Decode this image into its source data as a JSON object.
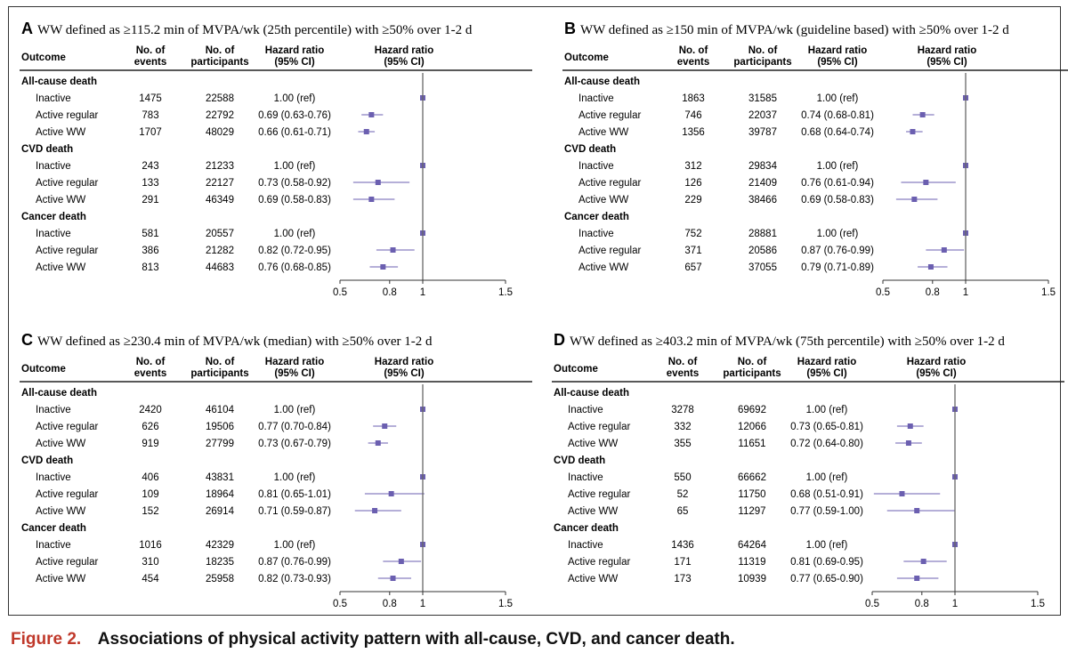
{
  "caption": {
    "figure_label": "Figure 2.",
    "text": "Associations of physical activity pattern with all-cause, CVD, and cancer death."
  },
  "colors": {
    "marker": "#6b5fb0",
    "ref_line": "#666666",
    "caption_label": "#c0392b"
  },
  "chart_data": [
    {
      "type": "forest",
      "panel_letter": "A",
      "title": "WW defined as ≥115.2 min of MVPA/wk (25th percentile) with ≥50% over 1-2 d",
      "columns": {
        "outcome": "Outcome",
        "events": [
          "No. of",
          "events"
        ],
        "participants": [
          "No. of",
          "participants"
        ],
        "hr": [
          "Hazard ratio",
          "(95% CI)"
        ],
        "plot": [
          "Hazard ratio",
          "(95% CI)"
        ]
      },
      "xlim": [
        0.5,
        1.5
      ],
      "xticks": [
        "0.5",
        "0.8",
        "1",
        "1.5"
      ],
      "groups": [
        {
          "name": "All-cause death",
          "rows": [
            {
              "label": "Inactive",
              "events": "1475",
              "participants": "22588",
              "hr_text": "1.00 (ref)",
              "hr": 1.0,
              "lo": 1.0,
              "hi": 1.0
            },
            {
              "label": "Active regular",
              "events": "783",
              "participants": "22792",
              "hr_text": "0.69 (0.63-0.76)",
              "hr": 0.69,
              "lo": 0.63,
              "hi": 0.76
            },
            {
              "label": "Active WW",
              "events": "1707",
              "participants": "48029",
              "hr_text": "0.66 (0.61-0.71)",
              "hr": 0.66,
              "lo": 0.61,
              "hi": 0.71
            }
          ]
        },
        {
          "name": "CVD death",
          "rows": [
            {
              "label": "Inactive",
              "events": "243",
              "participants": "21233",
              "hr_text": "1.00 (ref)",
              "hr": 1.0,
              "lo": 1.0,
              "hi": 1.0
            },
            {
              "label": "Active regular",
              "events": "133",
              "participants": "22127",
              "hr_text": "0.73 (0.58-0.92)",
              "hr": 0.73,
              "lo": 0.58,
              "hi": 0.92
            },
            {
              "label": "Active WW",
              "events": "291",
              "participants": "46349",
              "hr_text": "0.69 (0.58-0.83)",
              "hr": 0.69,
              "lo": 0.58,
              "hi": 0.83
            }
          ]
        },
        {
          "name": "Cancer death",
          "rows": [
            {
              "label": "Inactive",
              "events": "581",
              "participants": "20557",
              "hr_text": "1.00 (ref)",
              "hr": 1.0,
              "lo": 1.0,
              "hi": 1.0
            },
            {
              "label": "Active regular",
              "events": "386",
              "participants": "21282",
              "hr_text": "0.82 (0.72-0.95)",
              "hr": 0.82,
              "lo": 0.72,
              "hi": 0.95
            },
            {
              "label": "Active WW",
              "events": "813",
              "participants": "44683",
              "hr_text": "0.76 (0.68-0.85)",
              "hr": 0.76,
              "lo": 0.68,
              "hi": 0.85
            }
          ]
        }
      ]
    },
    {
      "type": "forest",
      "panel_letter": "B",
      "title": "WW defined as ≥150 min of MVPA/wk (guideline based) with ≥50% over 1-2 d",
      "columns": {
        "outcome": "Outcome",
        "events": [
          "No. of",
          "events"
        ],
        "participants": [
          "No. of",
          "participants"
        ],
        "hr": [
          "Hazard ratio",
          "(95% CI)"
        ],
        "plot": [
          "Hazard ratio",
          "(95% CI)"
        ]
      },
      "xlim": [
        0.5,
        1.5
      ],
      "xticks": [
        "0.5",
        "0.8",
        "1",
        "1.5"
      ],
      "groups": [
        {
          "name": "All-cause death",
          "rows": [
            {
              "label": "Inactive",
              "events": "1863",
              "participants": "31585",
              "hr_text": "1.00 (ref)",
              "hr": 1.0,
              "lo": 1.0,
              "hi": 1.0
            },
            {
              "label": "Active regular",
              "events": "746",
              "participants": "22037",
              "hr_text": "0.74 (0.68-0.81)",
              "hr": 0.74,
              "lo": 0.68,
              "hi": 0.81
            },
            {
              "label": "Active WW",
              "events": "1356",
              "participants": "39787",
              "hr_text": "0.68 (0.64-0.74)",
              "hr": 0.68,
              "lo": 0.64,
              "hi": 0.74
            }
          ]
        },
        {
          "name": "CVD death",
          "rows": [
            {
              "label": "Inactive",
              "events": "312",
              "participants": "29834",
              "hr_text": "1.00 (ref)",
              "hr": 1.0,
              "lo": 1.0,
              "hi": 1.0
            },
            {
              "label": "Active regular",
              "events": "126",
              "participants": "21409",
              "hr_text": "0.76 (0.61-0.94)",
              "hr": 0.76,
              "lo": 0.61,
              "hi": 0.94
            },
            {
              "label": "Active WW",
              "events": "229",
              "participants": "38466",
              "hr_text": "0.69 (0.58-0.83)",
              "hr": 0.69,
              "lo": 0.58,
              "hi": 0.83
            }
          ]
        },
        {
          "name": "Cancer death",
          "rows": [
            {
              "label": "Inactive",
              "events": "752",
              "participants": "28881",
              "hr_text": "1.00 (ref)",
              "hr": 1.0,
              "lo": 1.0,
              "hi": 1.0
            },
            {
              "label": "Active regular",
              "events": "371",
              "participants": "20586",
              "hr_text": "0.87 (0.76-0.99)",
              "hr": 0.87,
              "lo": 0.76,
              "hi": 0.99
            },
            {
              "label": "Active WW",
              "events": "657",
              "participants": "37055",
              "hr_text": "0.79 (0.71-0.89)",
              "hr": 0.79,
              "lo": 0.71,
              "hi": 0.89
            }
          ]
        }
      ]
    },
    {
      "type": "forest",
      "panel_letter": "C",
      "title": "WW defined as ≥230.4 min of MVPA/wk (median) with ≥50% over 1-2 d",
      "columns": {
        "outcome": "Outcome",
        "events": [
          "No. of",
          "events"
        ],
        "participants": [
          "No. of",
          "participants"
        ],
        "hr": [
          "Hazard ratio",
          "(95% CI)"
        ],
        "plot": [
          "Hazard ratio",
          "(95% CI)"
        ]
      },
      "xlim": [
        0.5,
        1.5
      ],
      "xticks": [
        "0.5",
        "0.8",
        "1",
        "1.5"
      ],
      "groups": [
        {
          "name": "All-cause death",
          "rows": [
            {
              "label": "Inactive",
              "events": "2420",
              "participants": "46104",
              "hr_text": "1.00 (ref)",
              "hr": 1.0,
              "lo": 1.0,
              "hi": 1.0
            },
            {
              "label": "Active regular",
              "events": "626",
              "participants": "19506",
              "hr_text": "0.77 (0.70-0.84)",
              "hr": 0.77,
              "lo": 0.7,
              "hi": 0.84
            },
            {
              "label": "Active WW",
              "events": "919",
              "participants": "27799",
              "hr_text": "0.73 (0.67-0.79)",
              "hr": 0.73,
              "lo": 0.67,
              "hi": 0.79
            }
          ]
        },
        {
          "name": "CVD death",
          "rows": [
            {
              "label": "Inactive",
              "events": "406",
              "participants": "43831",
              "hr_text": "1.00 (ref)",
              "hr": 1.0,
              "lo": 1.0,
              "hi": 1.0
            },
            {
              "label": "Active regular",
              "events": "109",
              "participants": "18964",
              "hr_text": "0.81 (0.65-1.01)",
              "hr": 0.81,
              "lo": 0.65,
              "hi": 1.01
            },
            {
              "label": "Active WW",
              "events": "152",
              "participants": "26914",
              "hr_text": "0.71 (0.59-0.87)",
              "hr": 0.71,
              "lo": 0.59,
              "hi": 0.87
            }
          ]
        },
        {
          "name": "Cancer death",
          "rows": [
            {
              "label": "Inactive",
              "events": "1016",
              "participants": "42329",
              "hr_text": "1.00 (ref)",
              "hr": 1.0,
              "lo": 1.0,
              "hi": 1.0
            },
            {
              "label": "Active regular",
              "events": "310",
              "participants": "18235",
              "hr_text": "0.87 (0.76-0.99)",
              "hr": 0.87,
              "lo": 0.76,
              "hi": 0.99
            },
            {
              "label": "Active WW",
              "events": "454",
              "participants": "25958",
              "hr_text": "0.82 (0.73-0.93)",
              "hr": 0.82,
              "lo": 0.73,
              "hi": 0.93
            }
          ]
        }
      ]
    },
    {
      "type": "forest",
      "panel_letter": "D",
      "title": "WW defined as ≥403.2 min of MVPA/wk (75th percentile) with ≥50% over 1-2 d",
      "columns": {
        "outcome": "Outcome",
        "events": [
          "No. of",
          "events"
        ],
        "participants": [
          "No. of",
          "participants"
        ],
        "hr": [
          "Hazard ratio",
          "(95% CI)"
        ],
        "plot": [
          "Hazard ratio",
          "(95% CI)"
        ]
      },
      "xlim": [
        0.5,
        1.5
      ],
      "xticks": [
        "0.5",
        "0.8",
        "1",
        "1.5"
      ],
      "groups": [
        {
          "name": "All-cause death",
          "rows": [
            {
              "label": "Inactive",
              "events": "3278",
              "participants": "69692",
              "hr_text": "1.00 (ref)",
              "hr": 1.0,
              "lo": 1.0,
              "hi": 1.0
            },
            {
              "label": "Active regular",
              "events": "332",
              "participants": "12066",
              "hr_text": "0.73 (0.65-0.81)",
              "hr": 0.73,
              "lo": 0.65,
              "hi": 0.81
            },
            {
              "label": "Active WW",
              "events": "355",
              "participants": "11651",
              "hr_text": "0.72 (0.64-0.80)",
              "hr": 0.72,
              "lo": 0.64,
              "hi": 0.8
            }
          ]
        },
        {
          "name": "CVD death",
          "rows": [
            {
              "label": "Inactive",
              "events": "550",
              "participants": "66662",
              "hr_text": "1.00 (ref)",
              "hr": 1.0,
              "lo": 1.0,
              "hi": 1.0
            },
            {
              "label": "Active regular",
              "events": "52",
              "participants": "11750",
              "hr_text": "0.68 (0.51-0.91)",
              "hr": 0.68,
              "lo": 0.51,
              "hi": 0.91
            },
            {
              "label": "Active WW",
              "events": "65",
              "participants": "11297",
              "hr_text": "0.77 (0.59-1.00)",
              "hr": 0.77,
              "lo": 0.59,
              "hi": 1.0
            }
          ]
        },
        {
          "name": "Cancer death",
          "rows": [
            {
              "label": "Inactive",
              "events": "1436",
              "participants": "64264",
              "hr_text": "1.00 (ref)",
              "hr": 1.0,
              "lo": 1.0,
              "hi": 1.0
            },
            {
              "label": "Active regular",
              "events": "171",
              "participants": "11319",
              "hr_text": "0.81 (0.69-0.95)",
              "hr": 0.81,
              "lo": 0.69,
              "hi": 0.95
            },
            {
              "label": "Active WW",
              "events": "173",
              "participants": "10939",
              "hr_text": "0.77 (0.65-0.90)",
              "hr": 0.77,
              "lo": 0.65,
              "hi": 0.9
            }
          ]
        }
      ]
    }
  ]
}
